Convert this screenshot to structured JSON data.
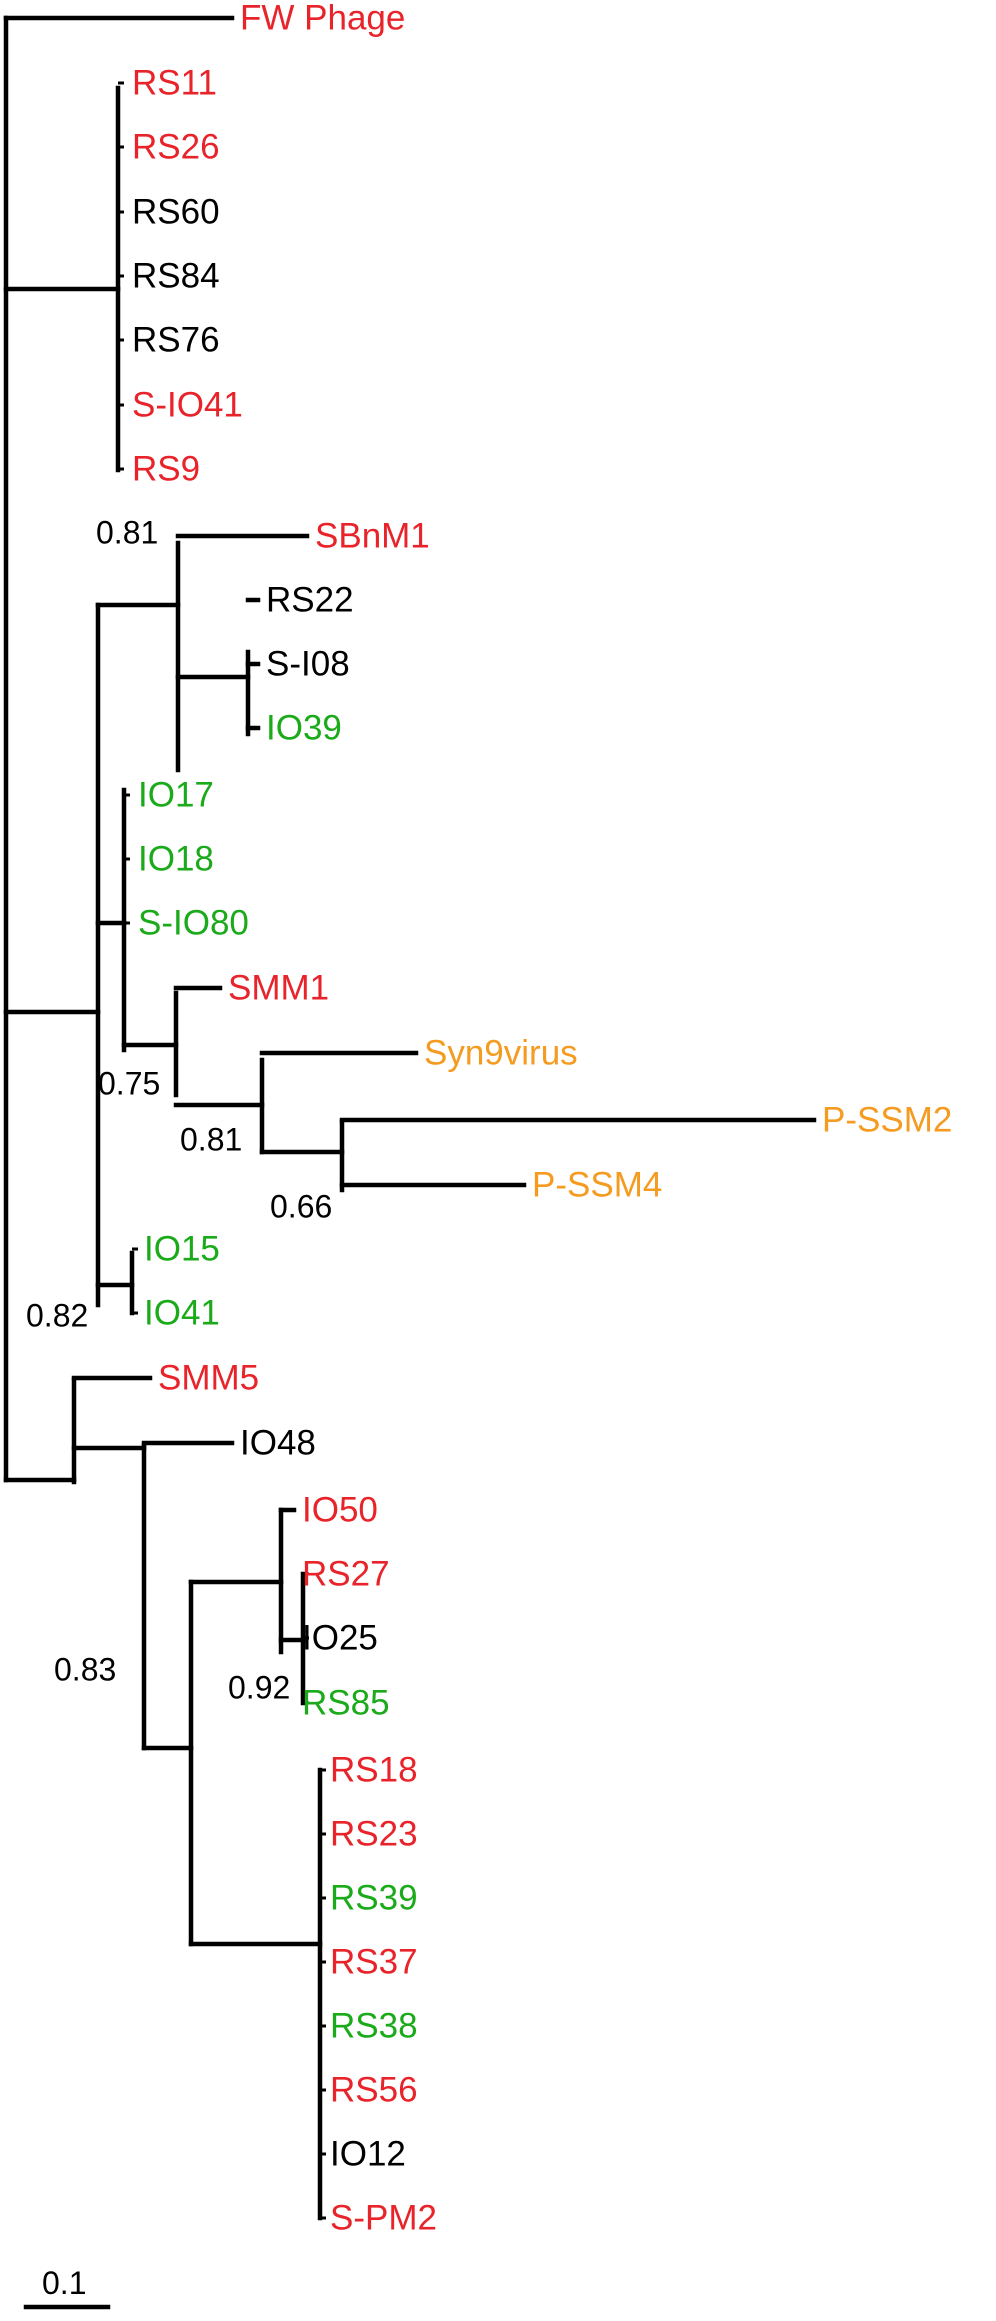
{
  "colors": {
    "red": "#e8232a",
    "black": "#000000",
    "green": "#1aaa1a",
    "orange": "#f49b20"
  },
  "leaves": [
    {
      "label": "FW Phage",
      "color": "red"
    },
    {
      "label": "RS11",
      "color": "red"
    },
    {
      "label": "RS26",
      "color": "red"
    },
    {
      "label": "RS60",
      "color": "black"
    },
    {
      "label": "RS84",
      "color": "black"
    },
    {
      "label": "RS76",
      "color": "black"
    },
    {
      "label": "S-IO41",
      "color": "red"
    },
    {
      "label": "RS9",
      "color": "red"
    },
    {
      "label": "SBnM1",
      "color": "red"
    },
    {
      "label": "RS22",
      "color": "black"
    },
    {
      "label": "S-I08",
      "color": "black"
    },
    {
      "label": "IO39",
      "color": "green"
    },
    {
      "label": "IO17",
      "color": "green"
    },
    {
      "label": "IO18",
      "color": "green"
    },
    {
      "label": "S-IO80",
      "color": "green"
    },
    {
      "label": "SMM1",
      "color": "red"
    },
    {
      "label": "Syn9virus",
      "color": "orange"
    },
    {
      "label": "P-SSM2",
      "color": "orange"
    },
    {
      "label": "P-SSM4",
      "color": "orange"
    },
    {
      "label": "IO15",
      "color": "green"
    },
    {
      "label": "IO41",
      "color": "green"
    },
    {
      "label": "SMM5",
      "color": "red"
    },
    {
      "label": "IO48",
      "color": "black"
    },
    {
      "label": "IO50",
      "color": "red"
    },
    {
      "label": "RS27",
      "color": "red"
    },
    {
      "label": "IO25",
      "color": "black"
    },
    {
      "label": "RS85",
      "color": "green"
    },
    {
      "label": "RS18",
      "color": "red"
    },
    {
      "label": "RS23",
      "color": "red"
    },
    {
      "label": "RS39",
      "color": "green"
    },
    {
      "label": "RS37",
      "color": "red"
    },
    {
      "label": "RS38",
      "color": "green"
    },
    {
      "label": "RS56",
      "color": "red"
    },
    {
      "label": "IO12",
      "color": "black"
    },
    {
      "label": "S-PM2",
      "color": "red"
    }
  ],
  "support_values": [
    "0.81",
    "0.75",
    "0.81",
    "0.66",
    "0.82",
    "0.83",
    "0.92"
  ],
  "scale_bar": {
    "label": "0.1"
  }
}
